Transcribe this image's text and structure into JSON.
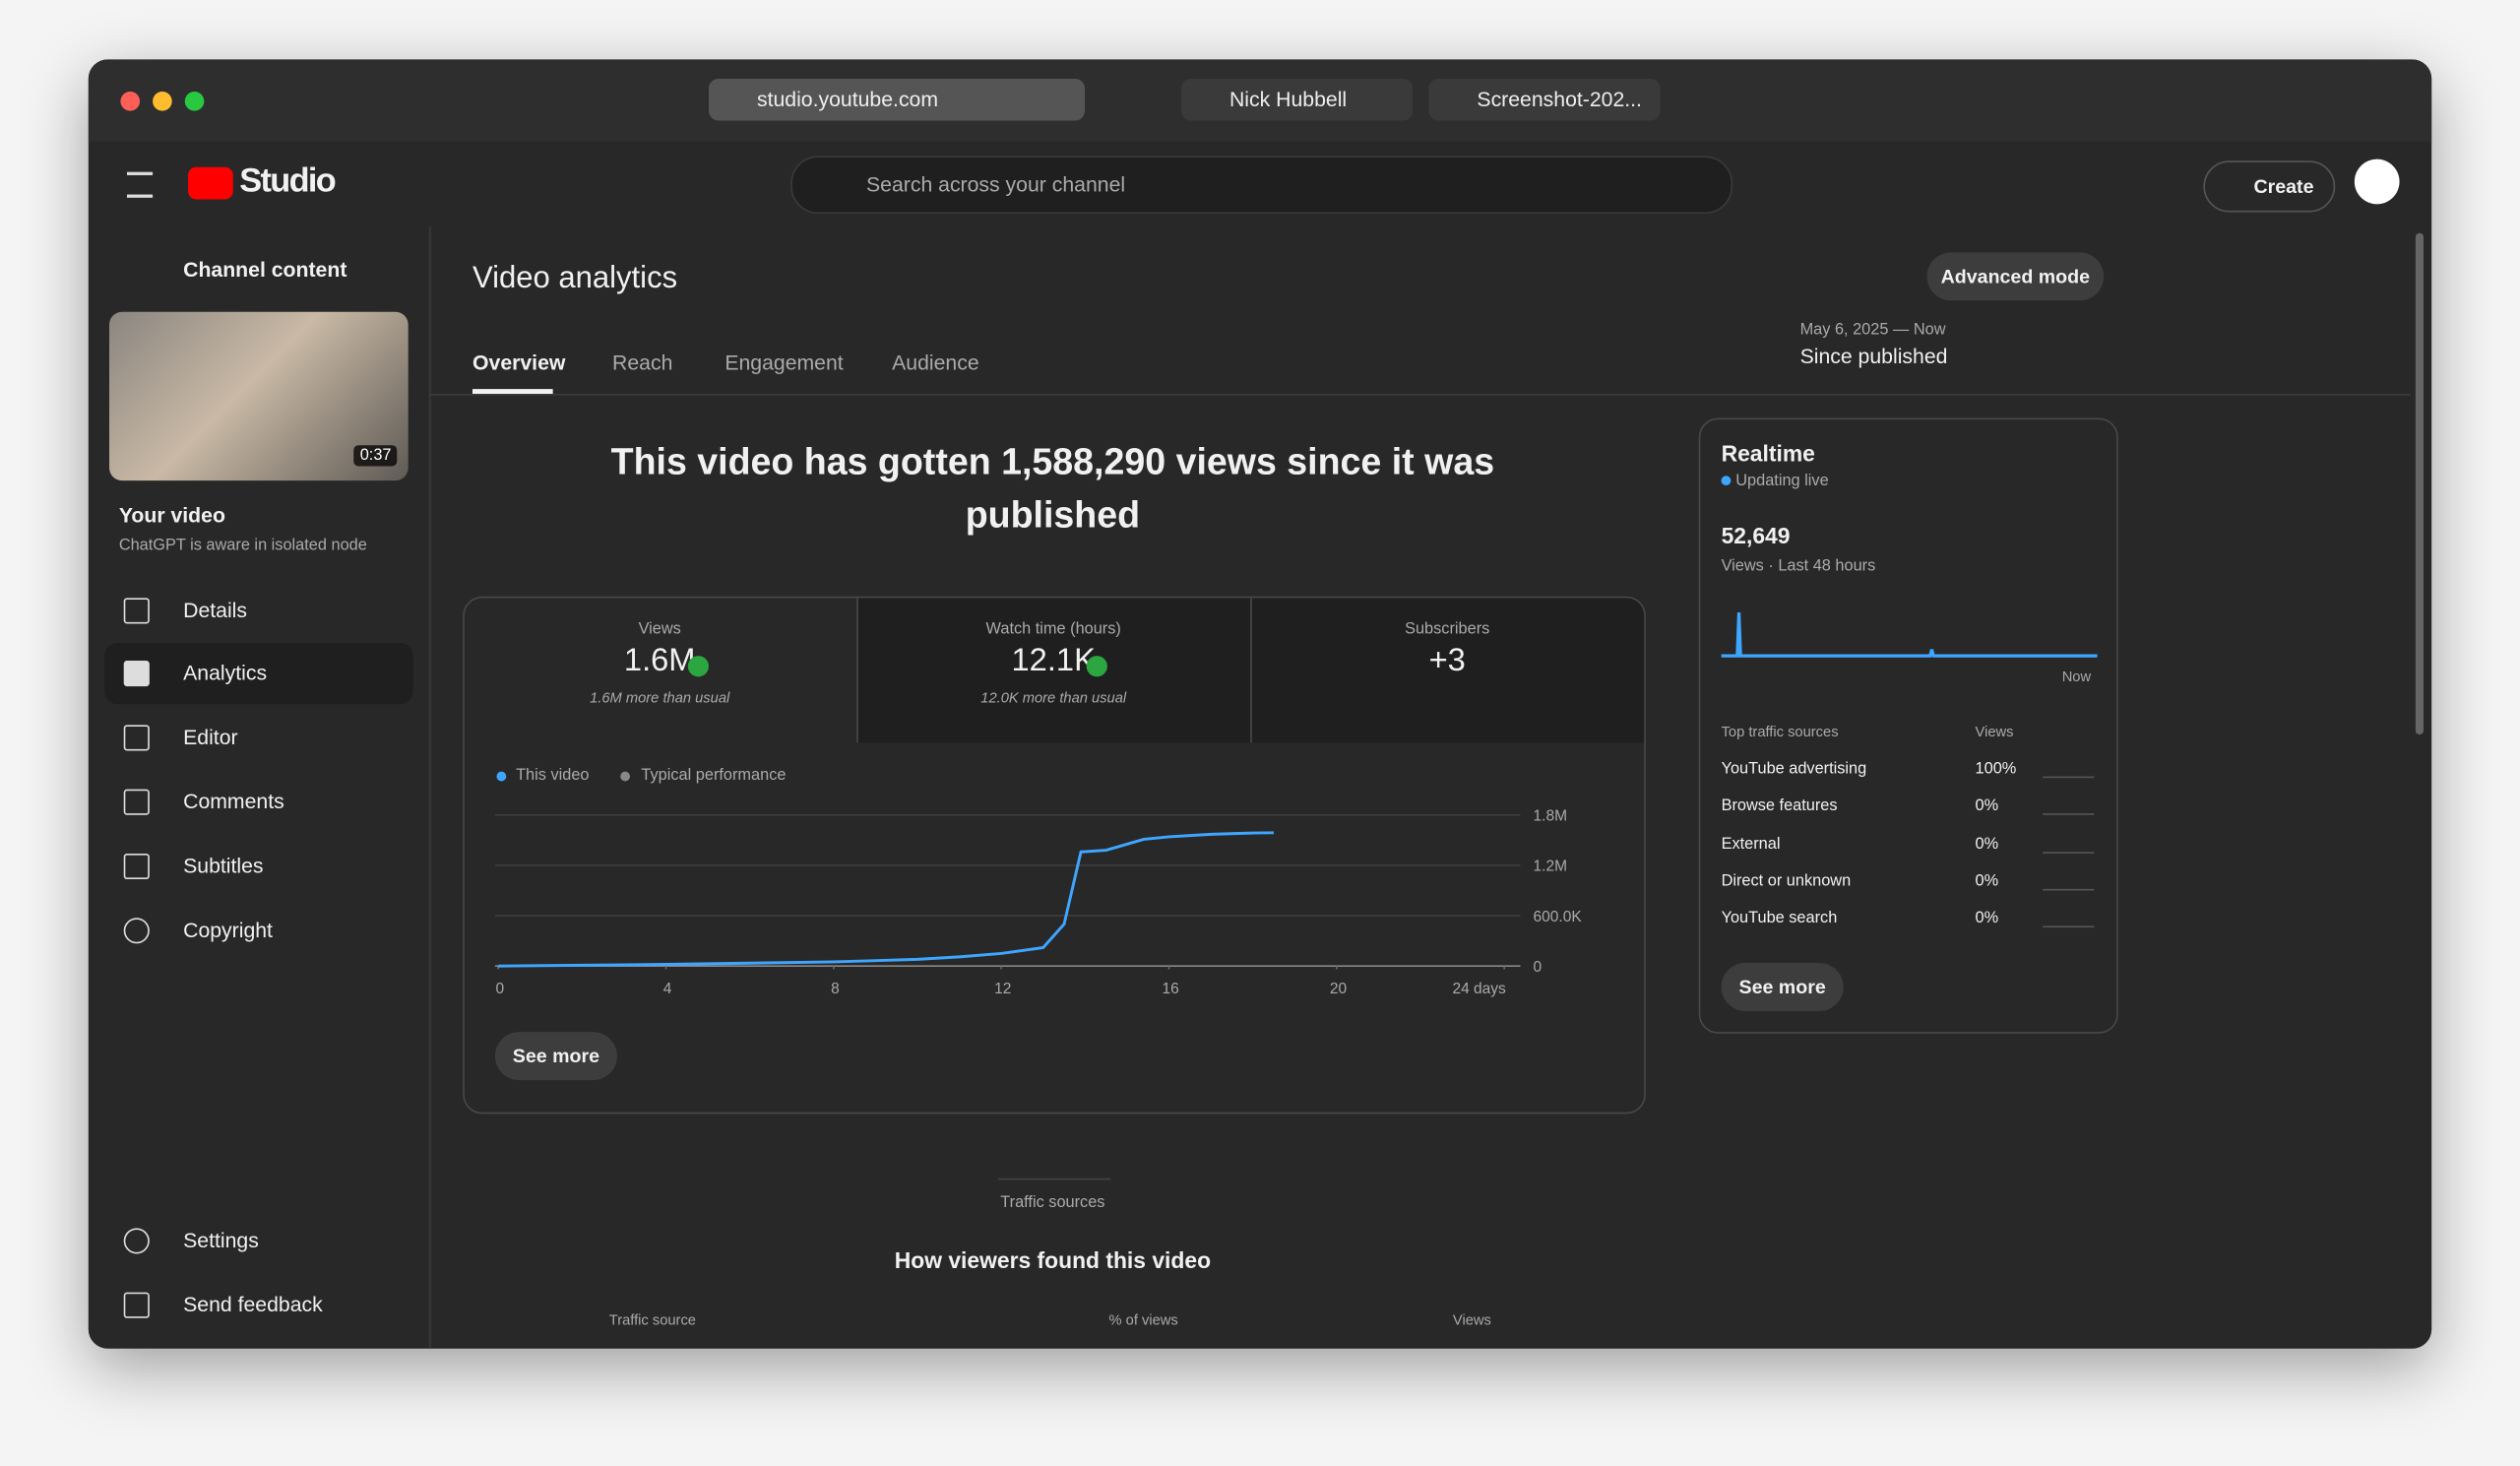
{
  "browser": {
    "tabs": [
      "studio.youtube.com",
      "Nick Hubbell",
      "Screenshot-202..."
    ]
  },
  "header": {
    "logo": "Studio",
    "search_placeholder": "Search across your channel",
    "create": "Create"
  },
  "sidebar": {
    "back": "Channel content",
    "duration": "0:37",
    "your_video": "Your video",
    "video_title": "ChatGPT is aware in isolated node",
    "nav": [
      "Details",
      "Analytics",
      "Editor",
      "Comments",
      "Subtitles",
      "Copyright"
    ],
    "bottom": [
      "Settings",
      "Send feedback"
    ]
  },
  "main": {
    "title": "Video analytics",
    "advanced": "Advanced mode",
    "tabs": [
      "Overview",
      "Reach",
      "Engagement",
      "Audience"
    ],
    "date_range": "May 6, 2025 — Now",
    "period": "Since published",
    "headline": "This video has gotten 1,588,290 views since it was published",
    "metrics": [
      {
        "label": "Views",
        "value": "1.6M",
        "note": "1.6M more than usual"
      },
      {
        "label": "Watch time (hours)",
        "value": "12.1K",
        "note": "12.0K more than usual"
      },
      {
        "label": "Subscribers",
        "value": "+3"
      }
    ],
    "chart": {
      "legend": [
        "This video",
        "Typical performance"
      ],
      "xlim": [
        0,
        24
      ],
      "ylim": [
        0,
        1800000
      ],
      "xticks": [
        0,
        4,
        8,
        12,
        16,
        20,
        {
          "value": 24,
          "label": "24 days"
        }
      ],
      "yticks": [
        0,
        {
          "value": 600000,
          "label": "600.0K"
        },
        {
          "value": 1200000,
          "label": "1.2M"
        },
        {
          "value": 1800000,
          "label": "1.8M"
        }
      ],
      "x": [
        0,
        2,
        4,
        6,
        8,
        10,
        11,
        12,
        13,
        13.5,
        13.9,
        14.5,
        15.4,
        16,
        17,
        18,
        18.5
      ],
      "values": [
        0,
        10000,
        20000,
        35000,
        50000,
        80000,
        110000,
        150000,
        220000,
        500000,
        1360000,
        1380000,
        1510000,
        1540000,
        1570000,
        1585000,
        1588290
      ]
    },
    "see_more": "See more",
    "traffic": {
      "section": "Traffic sources",
      "title": "How viewers found this video",
      "columns": [
        "Traffic source",
        "% of views",
        "Views"
      ]
    }
  },
  "realtime": {
    "title": "Realtime",
    "status": "Updating live",
    "count": "52,649",
    "period": "Views · Last 48 hours",
    "now": "Now",
    "header": [
      "Top traffic sources",
      "Views"
    ],
    "sources": [
      {
        "name": "YouTube advertising",
        "pct": "100%"
      },
      {
        "name": "Browse features",
        "pct": "0%"
      },
      {
        "name": "External",
        "pct": "0%"
      },
      {
        "name": "Direct or unknown",
        "pct": "0%"
      },
      {
        "name": "YouTube search",
        "pct": "0%"
      }
    ],
    "see_more": "See more"
  }
}
